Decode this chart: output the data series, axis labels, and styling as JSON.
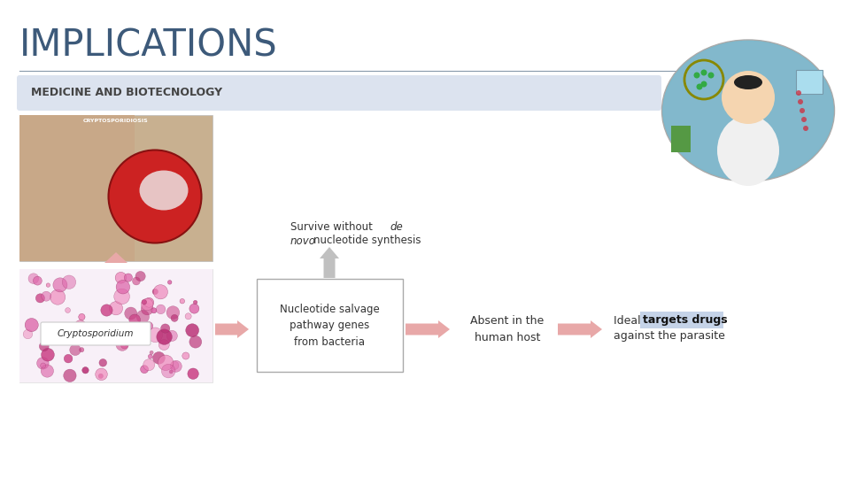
{
  "title": "IMPLICATIONS",
  "title_color": "#3d5a7a",
  "title_fontsize": 30,
  "subtitle": "MEDICINE AND BIOTECNOLOGY",
  "subtitle_bg": "#dce3ef",
  "subtitle_text_color": "#444444",
  "subtitle_fontsize": 9,
  "bg_color": "#ffffff",
  "line_color": "#8899aa",
  "box_text": "Nucleotide salvage\npathway genes\nfrom bacteria",
  "box_border": "#aaaaaa",
  "box_bg": "#ffffff",
  "absent_text": "Absent in the\nhuman host",
  "ideal_text1": "Ideal ",
  "ideal_text2": "targets drugs",
  "ideal_text3": "against the parasite",
  "ideal_highlight_color": "#c5d3e8",
  "cryptosporidium_label": "Cryptosporidium",
  "arrow_pink": "#e8a8a8",
  "arrow_gray": "#c0c0c0",
  "survive_line1_normal": "Survive without ",
  "survive_line1_italic": "de",
  "survive_line2_italic": "novo",
  "survive_line2_normal": "nucleotide synthesis",
  "text_color": "#333333"
}
